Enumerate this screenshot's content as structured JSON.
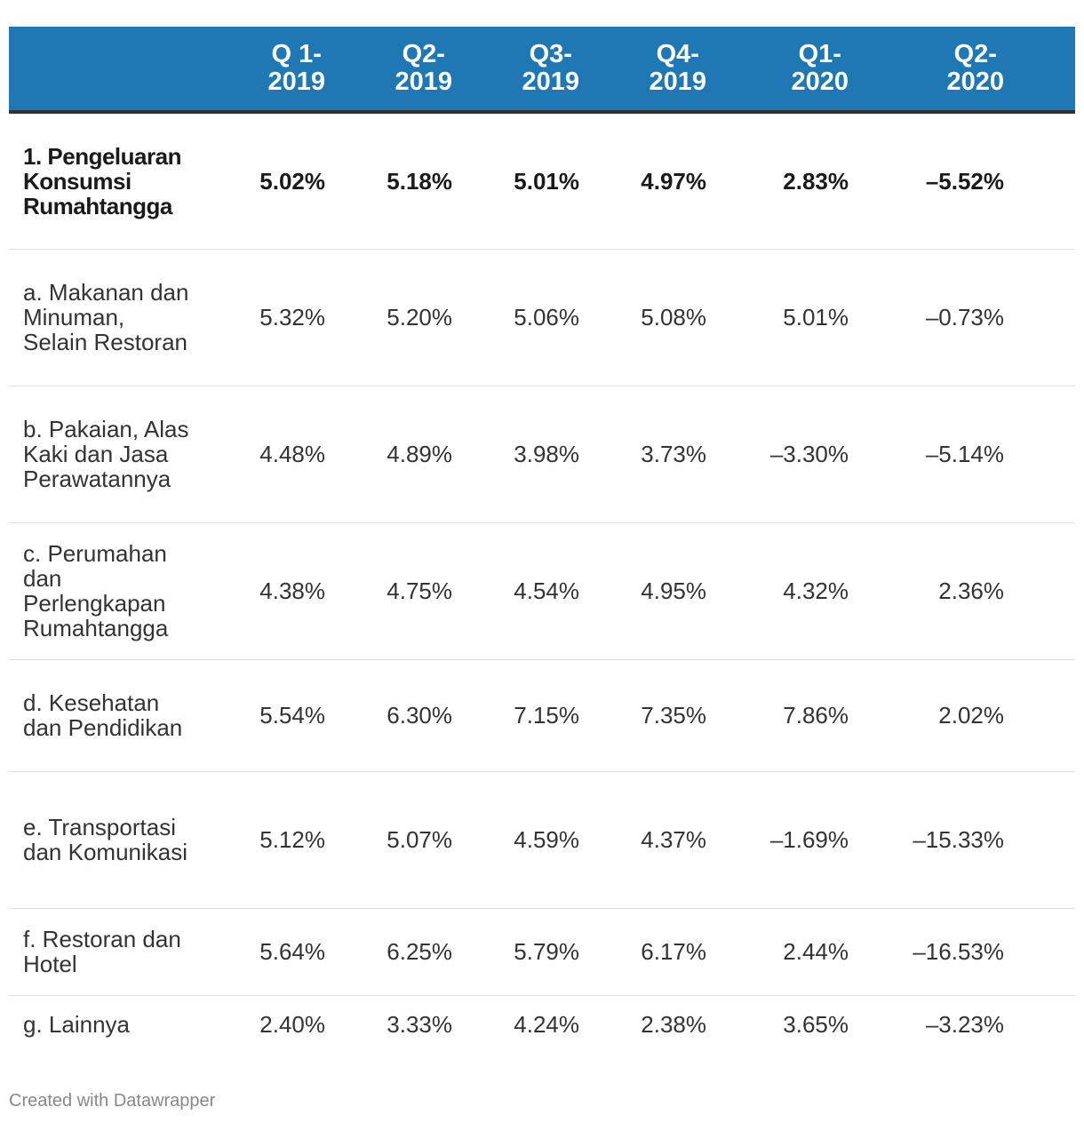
{
  "chart_data": {
    "type": "table",
    "columns": [
      "",
      "Q 1-\n2019",
      "Q2-\n2019",
      "Q3-\n2019",
      "Q4-\n2019",
      "Q1-\n2020",
      "Q2-\n2020",
      ""
    ],
    "rows": [
      {
        "label": "1. Pengeluaran Konsumsi Rumahtangga",
        "bold": true,
        "values": [
          "5.02%",
          "5.18%",
          "5.01%",
          "4.97%",
          "2.83%",
          "–5.52%",
          "–"
        ]
      },
      {
        "label": "a. Makanan dan Minuman, Selain Restoran",
        "bold": false,
        "values": [
          "5.32%",
          "5.20%",
          "5.06%",
          "5.08%",
          "5.01%",
          "–0.73%",
          "–"
        ]
      },
      {
        "label": "b. Pakaian, Alas Kaki dan Jasa Perawatannya",
        "bold": false,
        "values": [
          "4.48%",
          "4.89%",
          "3.98%",
          "3.73%",
          "–3.30%",
          "–5.14%",
          "–"
        ]
      },
      {
        "label": "c. Perumahan dan Perlengkapan Rumahtangga",
        "bold": false,
        "values": [
          "4.38%",
          "4.75%",
          "4.54%",
          "4.95%",
          "4.32%",
          "2.36%",
          ""
        ]
      },
      {
        "label": "d. Kesehatan dan Pendidikan",
        "bold": false,
        "values": [
          "5.54%",
          "6.30%",
          "7.15%",
          "7.35%",
          "7.86%",
          "2.02%",
          ""
        ]
      },
      {
        "label": "e. Transportasi dan Komunikasi",
        "bold": false,
        "values": [
          "5.12%",
          "5.07%",
          "4.59%",
          "4.37%",
          "–1.69%",
          "–15.33%",
          "–1"
        ]
      },
      {
        "label": "f. Restoran dan Hotel",
        "bold": false,
        "values": [
          "5.64%",
          "6.25%",
          "5.79%",
          "6.17%",
          "2.44%",
          "–16.53%",
          "–1"
        ]
      },
      {
        "label": "g. Lainnya",
        "bold": false,
        "values": [
          "2.40%",
          "3.33%",
          "4.24%",
          "2.38%",
          "3.65%",
          "–3.23%",
          "–"
        ]
      }
    ],
    "header_color": "#1f78b4",
    "header_text_color": "#ffffff"
  },
  "footer": {
    "credit": "Created with Datawrapper"
  }
}
